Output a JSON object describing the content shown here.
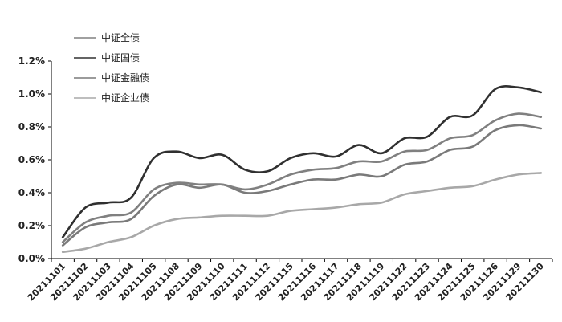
{
  "chart_data": {
    "type": "line",
    "x": [
      "20211101",
      "20211102",
      "20211103",
      "20211104",
      "20211105",
      "20211108",
      "20211109",
      "20211110",
      "20211111",
      "20211112",
      "20211115",
      "20211116",
      "20211117",
      "20211118",
      "20211119",
      "20211122",
      "20211123",
      "20211124",
      "20211125",
      "20211126",
      "20211129",
      "20211130"
    ],
    "yticks": [
      "0.0%",
      "0.2%",
      "0.4%",
      "0.6%",
      "0.8%",
      "1.0%",
      "1.2%"
    ],
    "ylim": [
      0,
      1.2
    ],
    "ylabel": "",
    "xlabel": "",
    "title": "",
    "grid": false,
    "legend_position": "top-left",
    "series": [
      {
        "name": "中证全债",
        "color": "#808080",
        "values": [
          0.1,
          0.22,
          0.26,
          0.28,
          0.42,
          0.46,
          0.45,
          0.45,
          0.42,
          0.45,
          0.51,
          0.54,
          0.55,
          0.59,
          0.59,
          0.65,
          0.66,
          0.73,
          0.75,
          0.84,
          0.88,
          0.86
        ]
      },
      {
        "name": "中证国债",
        "color": "#303030",
        "values": [
          0.13,
          0.31,
          0.34,
          0.37,
          0.61,
          0.65,
          0.61,
          0.63,
          0.54,
          0.53,
          0.61,
          0.64,
          0.62,
          0.69,
          0.64,
          0.73,
          0.74,
          0.86,
          0.87,
          1.03,
          1.04,
          1.01
        ]
      },
      {
        "name": "中证金融债",
        "color": "#7a7a7a",
        "values": [
          0.08,
          0.19,
          0.22,
          0.24,
          0.38,
          0.45,
          0.43,
          0.45,
          0.4,
          0.41,
          0.45,
          0.48,
          0.48,
          0.51,
          0.5,
          0.57,
          0.59,
          0.66,
          0.68,
          0.78,
          0.81,
          0.79
        ]
      },
      {
        "name": "中证企业债",
        "color": "#a8a8a8",
        "values": [
          0.04,
          0.06,
          0.1,
          0.13,
          0.2,
          0.24,
          0.25,
          0.26,
          0.26,
          0.26,
          0.29,
          0.3,
          0.31,
          0.33,
          0.34,
          0.39,
          0.41,
          0.43,
          0.44,
          0.48,
          0.51,
          0.52
        ]
      }
    ]
  }
}
